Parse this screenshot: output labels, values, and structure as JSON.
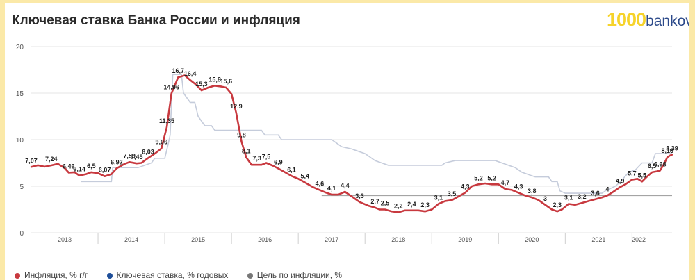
{
  "header": {
    "title": "Ключевая ставка Банка России и инфляция"
  },
  "brand": {
    "number": "1000",
    "text": "bankov.ru"
  },
  "colors": {
    "inflation": "#c8393f",
    "key_rate": "#c5ccdb",
    "target": "#a4a4a4",
    "grid": "#e6e6e6",
    "frame": "#fbe9a8"
  },
  "legend": {
    "items": [
      {
        "label": "Инфляция, % г/г",
        "color": "#c8393f"
      },
      {
        "label": "Ключевая ставка, % годовых",
        "color": "#1f4f99"
      },
      {
        "label": "Цель по инфляции, %",
        "color": "#777777"
      }
    ]
  },
  "chart_data": {
    "type": "line",
    "title": "Ключевая ставка Банка России и инфляция",
    "xlim": [
      2012.5,
      2022.1
    ],
    "ylim": [
      0,
      20
    ],
    "y_ticks": [
      "0",
      "5",
      "10",
      "15",
      "20"
    ],
    "x_ticks": [
      {
        "x": 2013.0,
        "label": "2013"
      },
      {
        "x": 2014.0,
        "label": "2014"
      },
      {
        "x": 2015.0,
        "label": "2015"
      },
      {
        "x": 2016.0,
        "label": "2016"
      },
      {
        "x": 2017.0,
        "label": "2017"
      },
      {
        "x": 2018.0,
        "label": "2018"
      },
      {
        "x": 2019.0,
        "label": "2019"
      },
      {
        "x": 2020.0,
        "label": "2020"
      },
      {
        "x": 2021.0,
        "label": "2021"
      },
      {
        "x": 2021.6,
        "label": "2022"
      }
    ],
    "grid": true,
    "legend_position": "bottom",
    "series": [
      {
        "name": "Инфляция, % г/г",
        "points": [
          [
            2012.5,
            7.07
          ],
          [
            2012.6,
            7.25
          ],
          [
            2012.7,
            7.1
          ],
          [
            2012.8,
            7.24
          ],
          [
            2012.9,
            7.4
          ],
          [
            2013.0,
            6.95
          ],
          [
            2013.06,
            6.46
          ],
          [
            2013.15,
            6.5
          ],
          [
            2013.22,
            6.14
          ],
          [
            2013.32,
            6.3
          ],
          [
            2013.4,
            6.5
          ],
          [
            2013.5,
            6.4
          ],
          [
            2013.6,
            6.07
          ],
          [
            2013.7,
            6.3
          ],
          [
            2013.78,
            6.92
          ],
          [
            2013.9,
            7.4
          ],
          [
            2013.97,
            7.59
          ],
          [
            2014.08,
            7.45
          ],
          [
            2014.15,
            7.5
          ],
          [
            2014.25,
            8.03
          ],
          [
            2014.35,
            8.5
          ],
          [
            2014.45,
            9.06
          ],
          [
            2014.53,
            11.35
          ],
          [
            2014.6,
            14.96
          ],
          [
            2014.7,
            16.7
          ],
          [
            2014.8,
            16.9
          ],
          [
            2014.88,
            16.4
          ],
          [
            2014.97,
            15.9
          ],
          [
            2015.05,
            15.3
          ],
          [
            2015.15,
            15.6
          ],
          [
            2015.25,
            15.8
          ],
          [
            2015.35,
            15.7
          ],
          [
            2015.42,
            15.6
          ],
          [
            2015.5,
            14.9
          ],
          [
            2015.57,
            12.9
          ],
          [
            2015.65,
            9.8
          ],
          [
            2015.72,
            8.1
          ],
          [
            2015.8,
            7.3
          ],
          [
            2015.88,
            7.3
          ],
          [
            2015.95,
            7.3
          ],
          [
            2016.02,
            7.5
          ],
          [
            2016.12,
            7.2
          ],
          [
            2016.2,
            6.9
          ],
          [
            2016.3,
            6.5
          ],
          [
            2016.4,
            6.1
          ],
          [
            2016.5,
            5.8
          ],
          [
            2016.6,
            5.4
          ],
          [
            2016.72,
            4.9
          ],
          [
            2016.82,
            4.6
          ],
          [
            2016.92,
            4.3
          ],
          [
            2017.0,
            4.1
          ],
          [
            2017.1,
            4.1
          ],
          [
            2017.2,
            4.4
          ],
          [
            2017.3,
            3.9
          ],
          [
            2017.42,
            3.3
          ],
          [
            2017.55,
            2.9
          ],
          [
            2017.65,
            2.7
          ],
          [
            2017.72,
            2.5
          ],
          [
            2017.8,
            2.5
          ],
          [
            2017.9,
            2.3
          ],
          [
            2018.0,
            2.2
          ],
          [
            2018.1,
            2.4
          ],
          [
            2018.2,
            2.4
          ],
          [
            2018.3,
            2.4
          ],
          [
            2018.4,
            2.3
          ],
          [
            2018.5,
            2.5
          ],
          [
            2018.6,
            3.1
          ],
          [
            2018.7,
            3.4
          ],
          [
            2018.8,
            3.5
          ],
          [
            2018.9,
            3.9
          ],
          [
            2019.0,
            4.3
          ],
          [
            2019.1,
            5.0
          ],
          [
            2019.2,
            5.2
          ],
          [
            2019.3,
            5.3
          ],
          [
            2019.4,
            5.2
          ],
          [
            2019.5,
            5.2
          ],
          [
            2019.6,
            4.7
          ],
          [
            2019.7,
            4.6
          ],
          [
            2019.8,
            4.3
          ],
          [
            2019.9,
            4.0
          ],
          [
            2020.0,
            3.8
          ],
          [
            2020.1,
            3.5
          ],
          [
            2020.2,
            3.0
          ],
          [
            2020.3,
            2.5
          ],
          [
            2020.38,
            2.3
          ],
          [
            2020.45,
            2.5
          ],
          [
            2020.55,
            3.1
          ],
          [
            2020.65,
            3.0
          ],
          [
            2020.75,
            3.2
          ],
          [
            2020.85,
            3.4
          ],
          [
            2020.95,
            3.6
          ],
          [
            2021.05,
            3.8
          ],
          [
            2021.13,
            4.0
          ],
          [
            2021.22,
            4.4
          ],
          [
            2021.32,
            4.9
          ],
          [
            2021.4,
            5.2
          ],
          [
            2021.5,
            5.7
          ],
          [
            2021.58,
            5.8
          ],
          [
            2021.65,
            5.5
          ],
          [
            2021.72,
            6.0
          ],
          [
            2021.8,
            6.5
          ],
          [
            2021.87,
            6.6
          ],
          [
            2021.92,
            6.68
          ],
          [
            2021.98,
            7.4
          ],
          [
            2022.03,
            8.13
          ],
          [
            2022.07,
            8.3
          ],
          [
            2022.1,
            8.39
          ]
        ],
        "labels": [
          {
            "x": 2012.5,
            "y": 7.07,
            "text": "7,07"
          },
          {
            "x": 2012.8,
            "y": 7.24,
            "text": "7,24"
          },
          {
            "x": 2013.06,
            "y": 6.46,
            "text": "6,46"
          },
          {
            "x": 2013.22,
            "y": 6.14,
            "text": "6,14"
          },
          {
            "x": 2013.4,
            "y": 6.5,
            "text": "6,5"
          },
          {
            "x": 2013.6,
            "y": 6.07,
            "text": "6,07"
          },
          {
            "x": 2013.78,
            "y": 6.92,
            "text": "6,92"
          },
          {
            "x": 2013.97,
            "y": 7.59,
            "text": "7,59"
          },
          {
            "x": 2014.08,
            "y": 7.45,
            "text": "7,45"
          },
          {
            "x": 2014.25,
            "y": 8.03,
            "text": "8,03"
          },
          {
            "x": 2014.45,
            "y": 9.06,
            "text": "9,06"
          },
          {
            "x": 2014.53,
            "y": 11.35,
            "text": "11,35"
          },
          {
            "x": 2014.6,
            "y": 14.96,
            "text": "14,96"
          },
          {
            "x": 2014.7,
            "y": 16.7,
            "text": "16,7"
          },
          {
            "x": 2014.88,
            "y": 16.4,
            "text": "16,4"
          },
          {
            "x": 2015.05,
            "y": 15.3,
            "text": "15,3"
          },
          {
            "x": 2015.25,
            "y": 15.8,
            "text": "15,8"
          },
          {
            "x": 2015.42,
            "y": 15.6,
            "text": "15,6"
          },
          {
            "x": 2015.57,
            "y": 12.9,
            "text": "12,9"
          },
          {
            "x": 2015.65,
            "y": 9.8,
            "text": "9,8"
          },
          {
            "x": 2015.72,
            "y": 8.1,
            "text": "8,1"
          },
          {
            "x": 2015.88,
            "y": 7.3,
            "text": "7,3"
          },
          {
            "x": 2016.02,
            "y": 7.5,
            "text": "7,5"
          },
          {
            "x": 2016.2,
            "y": 6.9,
            "text": "6,9"
          },
          {
            "x": 2016.4,
            "y": 6.1,
            "text": "6,1"
          },
          {
            "x": 2016.6,
            "y": 5.4,
            "text": "5,4"
          },
          {
            "x": 2016.82,
            "y": 4.6,
            "text": "4,6"
          },
          {
            "x": 2017.0,
            "y": 4.1,
            "text": "4,1"
          },
          {
            "x": 2017.2,
            "y": 4.4,
            "text": "4,4"
          },
          {
            "x": 2017.42,
            "y": 3.3,
            "text": "3,3"
          },
          {
            "x": 2017.65,
            "y": 2.7,
            "text": "2,7"
          },
          {
            "x": 2017.8,
            "y": 2.5,
            "text": "2,5"
          },
          {
            "x": 2018.0,
            "y": 2.2,
            "text": "2,2"
          },
          {
            "x": 2018.2,
            "y": 2.4,
            "text": "2,4"
          },
          {
            "x": 2018.4,
            "y": 2.3,
            "text": "2,3"
          },
          {
            "x": 2018.6,
            "y": 3.1,
            "text": "3,1"
          },
          {
            "x": 2018.8,
            "y": 3.5,
            "text": "3,5"
          },
          {
            "x": 2019.0,
            "y": 4.3,
            "text": "4,3"
          },
          {
            "x": 2019.2,
            "y": 5.2,
            "text": "5,2"
          },
          {
            "x": 2019.4,
            "y": 5.2,
            "text": "5,2"
          },
          {
            "x": 2019.6,
            "y": 4.7,
            "text": "4,7"
          },
          {
            "x": 2019.8,
            "y": 4.3,
            "text": "4,3"
          },
          {
            "x": 2020.0,
            "y": 3.8,
            "text": "3,8"
          },
          {
            "x": 2020.2,
            "y": 3.0,
            "text": "3"
          },
          {
            "x": 2020.38,
            "y": 2.3,
            "text": "2,3"
          },
          {
            "x": 2020.55,
            "y": 3.1,
            "text": "3,1"
          },
          {
            "x": 2020.75,
            "y": 3.2,
            "text": "3,2"
          },
          {
            "x": 2020.95,
            "y": 3.6,
            "text": "3,6"
          },
          {
            "x": 2021.13,
            "y": 4.0,
            "text": "4"
          },
          {
            "x": 2021.32,
            "y": 4.9,
            "text": "4,9"
          },
          {
            "x": 2021.5,
            "y": 5.7,
            "text": "5,7"
          },
          {
            "x": 2021.65,
            "y": 5.5,
            "text": "5,5"
          },
          {
            "x": 2021.8,
            "y": 6.5,
            "text": "6,5"
          },
          {
            "x": 2021.92,
            "y": 6.68,
            "text": "6,68"
          },
          {
            "x": 2022.03,
            "y": 8.13,
            "text": "8,13"
          },
          {
            "x": 2022.1,
            "y": 8.39,
            "text": "8,39"
          }
        ]
      },
      {
        "name": "Ключевая ставка, % годовых",
        "step": true,
        "points": [
          [
            2013.25,
            5.5
          ],
          [
            2013.7,
            5.5
          ],
          [
            2013.72,
            7.0
          ],
          [
            2014.1,
            7.0
          ],
          [
            2014.3,
            7.5
          ],
          [
            2014.35,
            8.0
          ],
          [
            2014.5,
            8.0
          ],
          [
            2014.55,
            9.5
          ],
          [
            2014.58,
            10.5
          ],
          [
            2014.62,
            17.0
          ],
          [
            2014.75,
            17.0
          ],
          [
            2014.78,
            15.0
          ],
          [
            2014.88,
            14.0
          ],
          [
            2014.95,
            14.0
          ],
          [
            2015.0,
            12.5
          ],
          [
            2015.1,
            11.5
          ],
          [
            2015.2,
            11.5
          ],
          [
            2015.25,
            11.0
          ],
          [
            2015.95,
            11.0
          ],
          [
            2016.0,
            10.5
          ],
          [
            2016.2,
            10.5
          ],
          [
            2016.25,
            10.0
          ],
          [
            2017.0,
            10.0
          ],
          [
            2017.05,
            9.75
          ],
          [
            2017.15,
            9.25
          ],
          [
            2017.3,
            9.0
          ],
          [
            2017.5,
            8.5
          ],
          [
            2017.55,
            8.25
          ],
          [
            2017.65,
            7.75
          ],
          [
            2017.75,
            7.5
          ],
          [
            2017.85,
            7.25
          ],
          [
            2018.65,
            7.25
          ],
          [
            2018.7,
            7.5
          ],
          [
            2018.85,
            7.75
          ],
          [
            2019.45,
            7.75
          ],
          [
            2019.55,
            7.5
          ],
          [
            2019.65,
            7.25
          ],
          [
            2019.75,
            7.0
          ],
          [
            2019.85,
            6.5
          ],
          [
            2019.95,
            6.25
          ],
          [
            2020.05,
            6.0
          ],
          [
            2020.25,
            6.0
          ],
          [
            2020.3,
            5.5
          ],
          [
            2020.38,
            5.5
          ],
          [
            2020.42,
            4.5
          ],
          [
            2020.5,
            4.25
          ],
          [
            2021.05,
            4.25
          ],
          [
            2021.1,
            4.5
          ],
          [
            2021.25,
            5.0
          ],
          [
            2021.33,
            5.5
          ],
          [
            2021.45,
            6.5
          ],
          [
            2021.55,
            6.75
          ],
          [
            2021.65,
            7.5
          ],
          [
            2021.8,
            7.5
          ],
          [
            2021.85,
            8.5
          ],
          [
            2022.1,
            8.5
          ]
        ]
      },
      {
        "name": "Цель по инфляции, %",
        "points": [
          [
            2016.85,
            4.0
          ],
          [
            2022.1,
            4.0
          ]
        ]
      }
    ]
  }
}
